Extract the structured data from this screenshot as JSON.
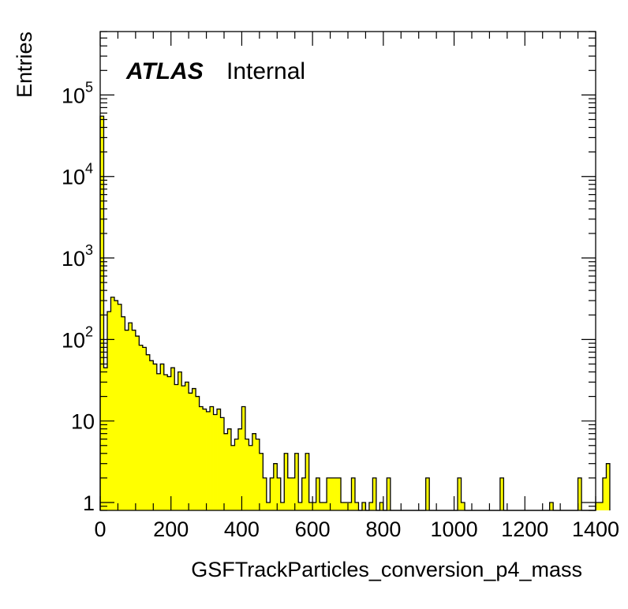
{
  "chart_data": {
    "type": "bar",
    "subtype": "step-histogram",
    "label_main": "ATLAS",
    "label_sub": "Internal",
    "xlabel": "GSFTrackParticles_conversion_p4_mass",
    "ylabel": "Entries",
    "xlim": [
      0,
      1400
    ],
    "ylim": [
      0.8,
      600000
    ],
    "yscale": "log",
    "bin_width": 10,
    "x_ticks": [
      "0",
      "200",
      "400",
      "600",
      "800",
      "1000",
      "1200",
      "1400"
    ],
    "y_ticks": [
      {
        "value": 1,
        "label": "1"
      },
      {
        "value": 10,
        "label": "10"
      },
      {
        "value": 100,
        "label": "10",
        "exponent": "2"
      },
      {
        "value": 1000,
        "label": "10",
        "exponent": "3"
      },
      {
        "value": 10000,
        "label": "10",
        "exponent": "4"
      },
      {
        "value": 100000,
        "label": "10",
        "exponent": "5"
      }
    ],
    "grid": false,
    "fill_color": "#ffff00",
    "line_color": "#000000",
    "values": [
      55000,
      45,
      220,
      330,
      300,
      270,
      190,
      130,
      160,
      130,
      110,
      85,
      80,
      65,
      55,
      50,
      38,
      50,
      37,
      35,
      45,
      28,
      40,
      27,
      30,
      22,
      25,
      20,
      15,
      14,
      13,
      15,
      12,
      14,
      11,
      7,
      8,
      5,
      6,
      8,
      15,
      6,
      5,
      7,
      6,
      4,
      2,
      1,
      2,
      3,
      2,
      1,
      4,
      2,
      2,
      4,
      1,
      2,
      4,
      1,
      1,
      2,
      1,
      1,
      2,
      2,
      2,
      2,
      1,
      1,
      1,
      2,
      1,
      0,
      1,
      0,
      1,
      2,
      0,
      1,
      0,
      2,
      0,
      0,
      0,
      0,
      0,
      0,
      0,
      0,
      0,
      0,
      2,
      0,
      0,
      0,
      0,
      0,
      0,
      0,
      0,
      2,
      1,
      0,
      0,
      0,
      0,
      0,
      0,
      0,
      0,
      0,
      0,
      2,
      0,
      0,
      0,
      0,
      0,
      0,
      0,
      0,
      0,
      0,
      0,
      0,
      0,
      1,
      0,
      0,
      0,
      0,
      0,
      0,
      0,
      2,
      0,
      0,
      0,
      0,
      1,
      1,
      2,
      3
    ]
  }
}
